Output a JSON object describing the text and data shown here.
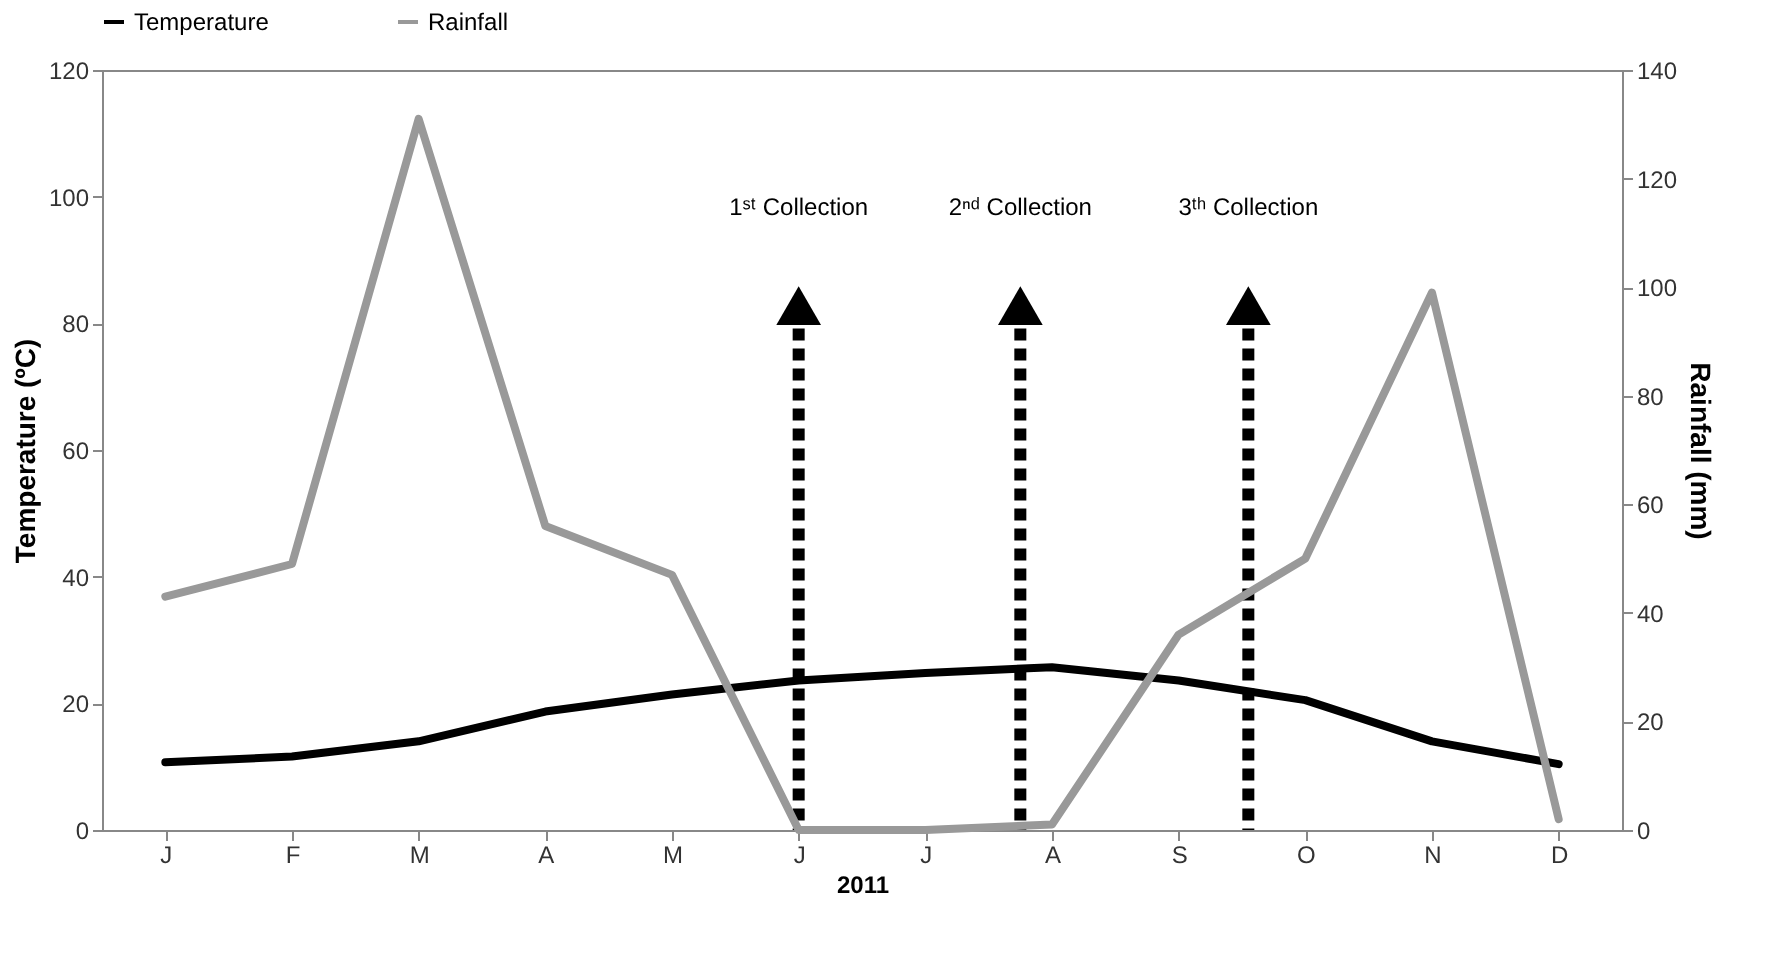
{
  "chart_data": {
    "type": "line",
    "xlabel": "2011",
    "ylabel": "Temperature (ºC)",
    "y2label": "Rainfall (mm)",
    "categories": [
      "J",
      "F",
      "M",
      "A",
      "M",
      "J",
      "J",
      "A",
      "S",
      "O",
      "N",
      "D"
    ],
    "ylim": [
      0,
      120
    ],
    "yticks": [
      0,
      20,
      40,
      60,
      80,
      100,
      120
    ],
    "y2lim": [
      0,
      140
    ],
    "y2ticks": [
      0,
      20,
      40,
      60,
      80,
      100,
      120,
      140
    ],
    "series": [
      {
        "name": "Temperature",
        "color": "#000000",
        "axis": "y",
        "values": [
          10.7,
          11.6,
          14,
          18.7,
          21.4,
          23.6,
          24.8,
          25.7,
          23.6,
          20.5,
          14,
          10.4
        ]
      },
      {
        "name": "Rainfall",
        "color": "#999999",
        "axis": "y2",
        "values": [
          43,
          49,
          131,
          56,
          47,
          0,
          0,
          1,
          36,
          50,
          99,
          2
        ]
      }
    ],
    "annotations": [
      "1ˢᵗ Collection",
      "2ⁿᵈ Collection",
      "3ᵗʰ Collection"
    ],
    "legend": "top",
    "grid": false,
    "marker": "none",
    "line_style": "solid"
  }
}
